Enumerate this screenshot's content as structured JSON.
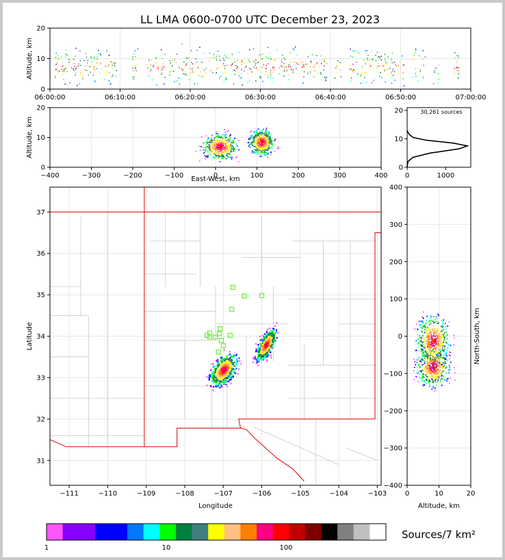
{
  "title": "LL LMA 0600-0700 UTC December 23, 2023",
  "source_count_label": "30,261 sources",
  "colorbar_label": "Sources/7 km²",
  "colors": {
    "county_lines": "#c8c8c8",
    "state_lines": "#e00000",
    "station_markers": "#66ee33",
    "grid": "#e6e6e6"
  },
  "chart_data": [
    {
      "id": "time_altitude",
      "type": "scatter",
      "xlabel": "",
      "ylabel": "Altitude, km",
      "x_ticks": [
        "06:00:00",
        "06:10:00",
        "06:20:00",
        "06:30:00",
        "06:40:00",
        "06:50:00",
        "07:00:00"
      ],
      "xlim_minutes": [
        0,
        60
      ],
      "y_ticks": [
        0,
        10,
        20
      ],
      "ylim": [
        0,
        20
      ],
      "grid": true,
      "activity_minutes": [
        1,
        2,
        3,
        4,
        5,
        6,
        7,
        8,
        9,
        12,
        14,
        15,
        16,
        17,
        18,
        19,
        20,
        21,
        22,
        23,
        24,
        25,
        26,
        27,
        28,
        29,
        30,
        31,
        32,
        33,
        34,
        35,
        36,
        37,
        38,
        39,
        41,
        43,
        44,
        45,
        46,
        47,
        48,
        49,
        50,
        52,
        53,
        55,
        58
      ]
    },
    {
      "id": "eastwest_altitude",
      "type": "heatmap",
      "xlabel": "East-West, km",
      "ylabel": "Altitude, km",
      "x_ticks": [
        -400,
        -300,
        -200,
        -100,
        0,
        100,
        200,
        300,
        400
      ],
      "xlim": [
        -400,
        400
      ],
      "y_ticks": [
        0,
        10,
        20
      ],
      "ylim": [
        0,
        20
      ],
      "grid": true,
      "clusters": [
        {
          "center_x": 10,
          "center_alt": 7.0,
          "spread_x": 35,
          "spread_alt": 2.5,
          "core_x": 20
        },
        {
          "center_x": 110,
          "center_alt": 8.5,
          "spread_x": 25,
          "spread_alt": 2.5,
          "core_x": 10
        }
      ]
    },
    {
      "id": "altitude_histogram",
      "type": "line",
      "x_ticks": [
        0,
        1000
      ],
      "xlim": [
        0,
        1650
      ],
      "y_ticks": [
        0,
        10,
        20
      ],
      "ylim": [
        0,
        21
      ],
      "profile": [
        [
          0,
          0
        ],
        [
          20,
          2
        ],
        [
          150,
          3.5
        ],
        [
          600,
          5
        ],
        [
          1350,
          6.5
        ],
        [
          1560,
          7.5
        ],
        [
          1200,
          8.5
        ],
        [
          500,
          9.5
        ],
        [
          150,
          10.5
        ],
        [
          60,
          11.5
        ],
        [
          10,
          12.5
        ],
        [
          0,
          13
        ]
      ]
    },
    {
      "id": "plan_view",
      "type": "heatmap",
      "xlabel": "Longitude",
      "ylabel": "Latitude",
      "x_ticks": [
        -111,
        -110,
        -109,
        -108,
        -107,
        -106,
        -105,
        -104,
        -103
      ],
      "xlim": [
        -111.5,
        -102.9
      ],
      "y_ticks": [
        31,
        32,
        33,
        34,
        35,
        36,
        37
      ],
      "ylim": [
        30.4,
        37.6
      ],
      "grid": true,
      "clusters": [
        {
          "lon": -107.0,
          "lat": 33.2,
          "spread_lon": 0.28,
          "spread_lat": 0.35
        },
        {
          "lon": -105.9,
          "lat": 33.8,
          "spread_lon": 0.18,
          "spread_lat": 0.35
        }
      ],
      "stations": [
        [
          -106.75,
          35.18
        ],
        [
          -106.45,
          34.97
        ],
        [
          -106.0,
          34.98
        ],
        [
          -106.78,
          34.65
        ],
        [
          -107.35,
          34.08
        ],
        [
          -107.08,
          34.18
        ],
        [
          -107.1,
          34.06
        ],
        [
          -106.82,
          34.02
        ],
        [
          -107.35,
          33.98
        ],
        [
          -107.42,
          34.02
        ],
        [
          -107.2,
          33.98
        ],
        [
          -107.05,
          33.9
        ],
        [
          -107.0,
          33.77
        ],
        [
          -107.12,
          33.62
        ]
      ]
    },
    {
      "id": "altitude_northsouth",
      "type": "heatmap",
      "xlabel": "Altitude, km",
      "ylabel": "North-South, km",
      "x_ticks": [
        0,
        10,
        20
      ],
      "xlim": [
        0,
        20
      ],
      "y_ticks": [
        -400,
        -300,
        -200,
        -100,
        0,
        100,
        200,
        300,
        400
      ],
      "ylim": [
        -400,
        400
      ],
      "grid": true
    },
    {
      "id": "colorbar",
      "type": "colorbar",
      "label": "Sources/7 km²",
      "tick_labels": [
        "1",
        "10",
        "100"
      ],
      "colors": [
        "#ff55ff",
        "#8800ff",
        "#0000ff",
        "#0077ff",
        "#00ffff",
        "#00ff00",
        "#008040",
        "#408080",
        "#ffff00",
        "#ffc080",
        "#ff8000",
        "#ff0080",
        "#ff0000",
        "#c00000",
        "#800000",
        "#000000",
        "#808080",
        "#c0c0c0",
        "#ffffff"
      ],
      "widths": [
        1,
        2,
        2,
        1,
        1,
        1,
        1,
        1,
        1,
        1,
        1,
        1,
        1,
        1,
        1,
        1,
        1,
        1,
        1
      ]
    }
  ]
}
